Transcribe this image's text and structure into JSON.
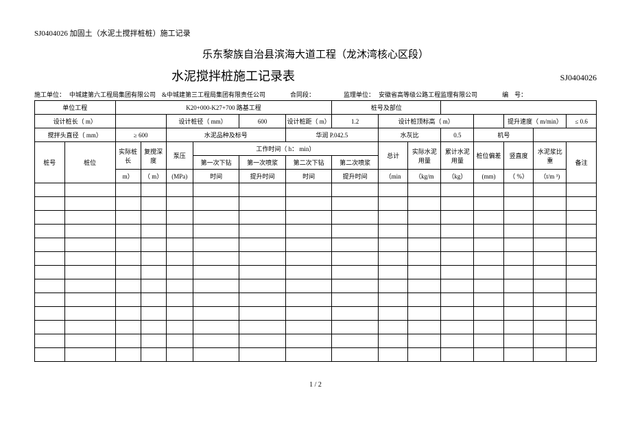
{
  "doc_header": "SJ0404026 加固土（水泥土搅拌桩桩）施工记录",
  "project_title": "乐东黎族自治县滨海大道工程（龙沐湾核心区段）",
  "form_title": "水泥搅拌桩施工记录表",
  "form_code": "SJ0404026",
  "meta": {
    "construction_unit_lbl": "施工单位：",
    "construction_unit_val": "中城建第六工程局集团有限公司　&中城建第三工程局集团有限责任公司",
    "contract_section_lbl": "合同段：",
    "contract_section_val": "",
    "supervisor_lbl": "监理单位：",
    "supervisor_val": "安徽省高等级公路工程监理有限公司",
    "serial_lbl": "编　号："
  },
  "hdr": {
    "unit_project_lbl": "单位工程",
    "unit_project_val": "K20+000-K27+700 路基工程",
    "pile_no_section_lbl": "桩号及部位",
    "pile_no_section_val": "",
    "design_len_lbl": "设计桩长（ m）",
    "design_len_val": "",
    "design_dia_lbl": "设计桩径（ mm）",
    "design_dia_val": "600",
    "design_spacing_lbl": "设计桩距（ m）",
    "design_spacing_val": "1.2",
    "design_top_lbl": "设计桩顶标高（ m）",
    "design_top_val": "",
    "lift_speed_lbl": "提升速度（ m/min）",
    "lift_speed_val": "≤ 0.6",
    "mixer_dia_lbl": "搅拌头直径（ mm）",
    "mixer_dia_val": "≥ 600",
    "cement_type_lbl": "水泥品种及标号",
    "cement_type_val": "华润 P.042.5",
    "wc_ratio_lbl": "水灰比",
    "wc_ratio_val": "0.5",
    "machine_no_lbl": "机号",
    "machine_no_val": "",
    "pile_no_lbl": "桩号",
    "pile_pos_lbl": "桩位",
    "actual_len_lbl": "实际桩长",
    "actual_len_unit": "m）",
    "redrill_depth_lbl": "复搅深度",
    "redrill_depth_unit": "（ m）",
    "pump_pressure_lbl": "泵压",
    "pump_pressure_unit": "(MPa)",
    "work_time_lbl": "工作时间（ h： min）",
    "drill1_lbl": "第一次下钻",
    "drill1_time_lbl": "时间",
    "spray1_lbl": "第一次喷浆",
    "spray1_time_lbl": "提升时间",
    "drill2_lbl": "第二次下钻",
    "drill2_time_lbl": "时间",
    "spray2_lbl": "第二次喷浆",
    "spray2_time_lbl": "提升时间",
    "total_lbl": "总计",
    "total_unit": "（min",
    "actual_cement_lbl": "实际水泥用量",
    "actual_cement_unit": "（kg/m",
    "cum_cement_lbl": "累计水泥用量",
    "cum_cement_unit": "（kg）",
    "pos_dev_lbl": "桩位偏差",
    "pos_dev_unit": "(mm)",
    "vert_lbl": "竖直度",
    "vert_unit": "（ %）",
    "slurry_sg_lbl": "水泥浆比重",
    "slurry_sg_unit": "（t/m ³)",
    "remark_lbl": "备注"
  },
  "footer": "1 / 2",
  "empty_rows": 13
}
